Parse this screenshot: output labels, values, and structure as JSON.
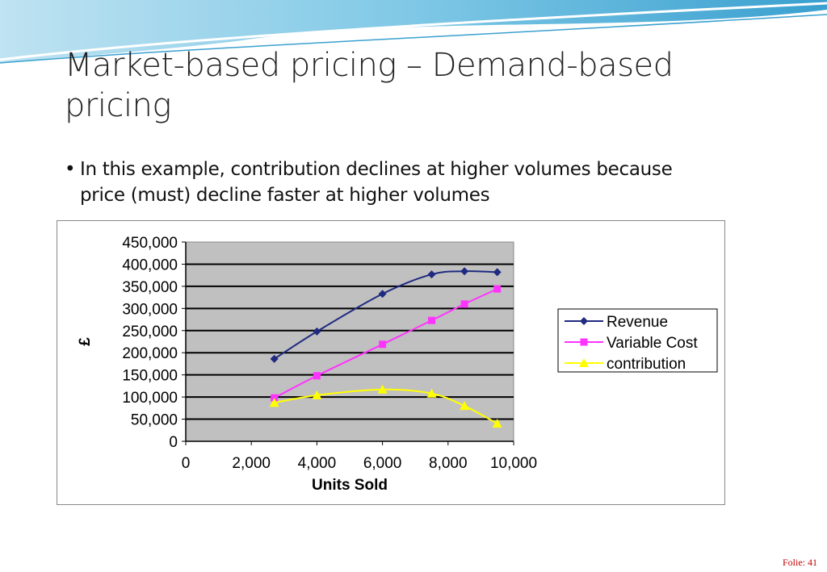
{
  "slide": {
    "title": "Market-based pricing – Demand-based pricing",
    "bullet": "In this example, contribution declines at higher volumes because price (must) decline faster at higher volumes",
    "footer": "Folie: 41"
  },
  "chart_data": {
    "type": "line",
    "title": "",
    "xlabel": "Units Sold",
    "ylabel": "£",
    "xlim": [
      0,
      10000
    ],
    "ylim": [
      0,
      450000
    ],
    "xticks": [
      "0",
      "2,000",
      "4,000",
      "6,000",
      "8,000",
      "10,000"
    ],
    "yticks": [
      "0",
      "50,000",
      "100,000",
      "150,000",
      "200,000",
      "250,000",
      "300,000",
      "350,000",
      "400,000",
      "450,000"
    ],
    "grid": true,
    "plot_background": "#c0c0c0",
    "legend_position": "right",
    "x": [
      2700,
      4000,
      6000,
      7500,
      8500,
      9500
    ],
    "series": [
      {
        "name": "Revenue",
        "color": "#1f2a80",
        "marker": "diamond",
        "values": [
          186000,
          248000,
          333000,
          377000,
          384000,
          382000
        ]
      },
      {
        "name": "Variable Cost",
        "color": "#ff33ff",
        "marker": "square",
        "values": [
          98000,
          148000,
          219000,
          273000,
          310000,
          344000
        ]
      },
      {
        "name": "contribution",
        "color": "#ffff00",
        "marker": "triangle",
        "values": [
          87000,
          104000,
          117000,
          108000,
          80000,
          40000
        ]
      }
    ]
  }
}
